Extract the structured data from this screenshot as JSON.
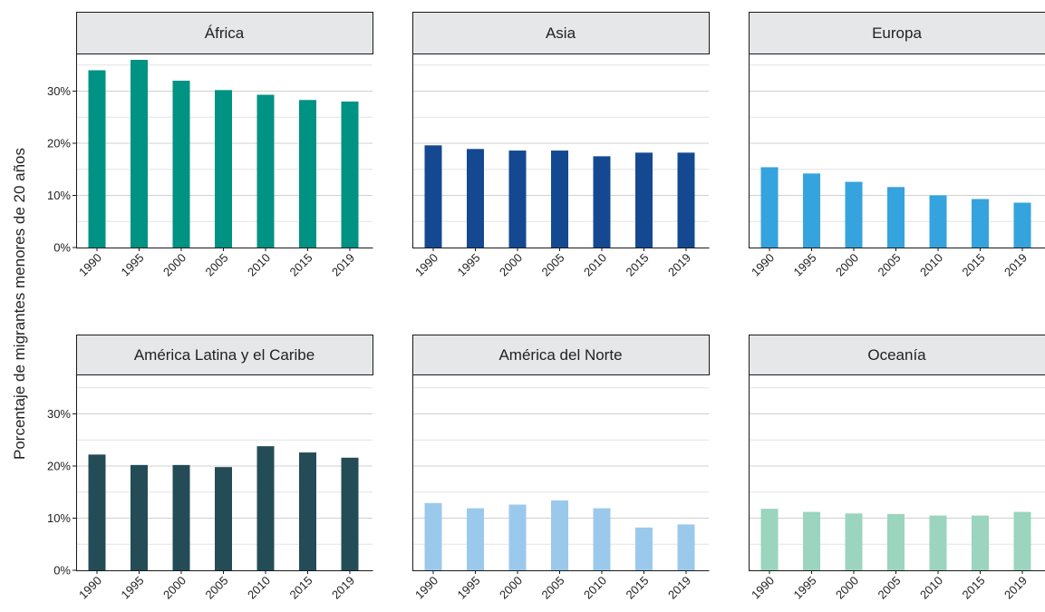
{
  "chart_data": {
    "type": "bar",
    "ylabel": "Porcentaje de migrantes menores de 20 años",
    "categories": [
      "1990",
      "1995",
      "2000",
      "2005",
      "2010",
      "2015",
      "2019"
    ],
    "ylim": [
      0,
      38
    ],
    "yticks": [
      0,
      10,
      20,
      30
    ],
    "ytick_labels": [
      "0%",
      "10%",
      "20%",
      "30%"
    ],
    "grid": true,
    "panels": [
      {
        "title": "África",
        "color": "#009283",
        "values": [
          34,
          36,
          32,
          30.2,
          29.3,
          28.3,
          28
        ]
      },
      {
        "title": "Asia",
        "color": "#144992",
        "values": [
          19.6,
          18.9,
          18.6,
          18.6,
          17.5,
          18.2,
          18.2
        ]
      },
      {
        "title": "Europa",
        "color": "#35a3dd",
        "values": [
          15.4,
          14.2,
          12.6,
          11.6,
          10,
          9.3,
          8.6
        ]
      },
      {
        "title": "América Latina y el Caribe",
        "color": "#244c56",
        "values": [
          22.2,
          20.2,
          20.2,
          19.8,
          23.8,
          22.6,
          21.6
        ]
      },
      {
        "title": "América del Norte",
        "color": "#9bc9ec",
        "values": [
          12.9,
          11.9,
          12.6,
          13.4,
          11.9,
          8.2,
          8.8
        ]
      },
      {
        "title": "Oceanía",
        "color": "#9bd4bf",
        "values": [
          11.8,
          11.2,
          10.9,
          10.8,
          10.5,
          10.5,
          11.2
        ]
      }
    ]
  }
}
